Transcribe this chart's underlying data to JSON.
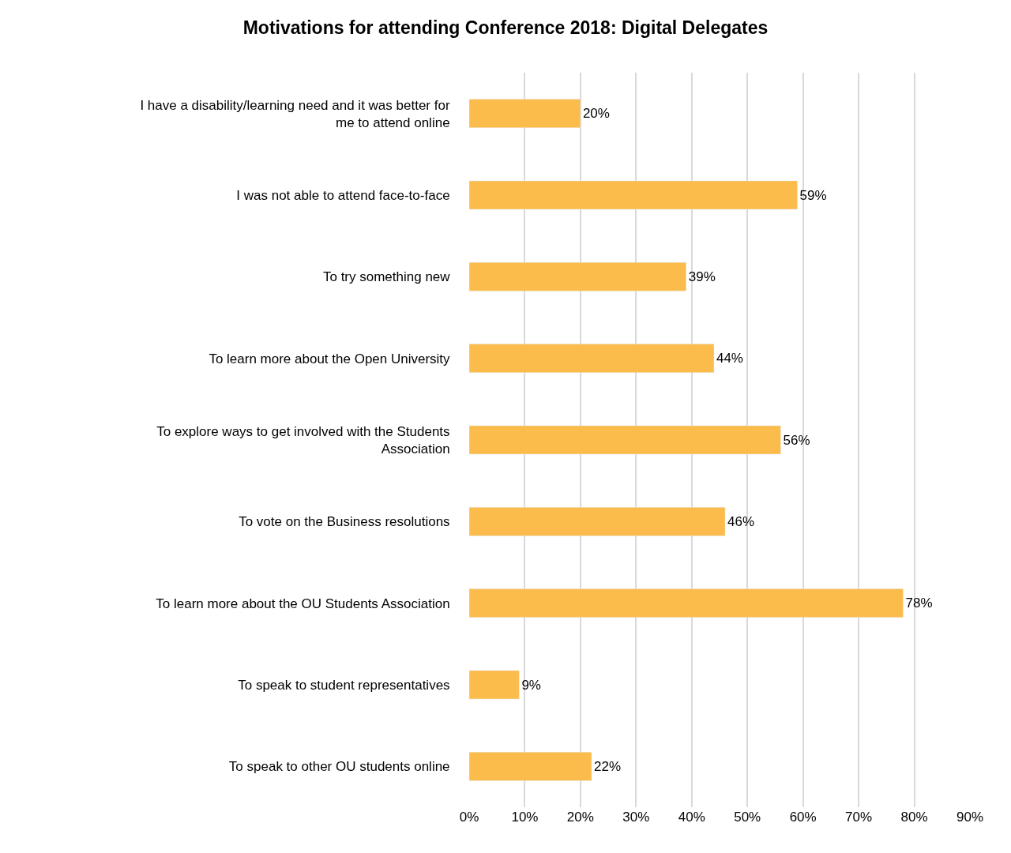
{
  "chart_data": {
    "type": "bar",
    "orientation": "horizontal",
    "title": "Motivations for attending Conference 2018: Digital Delegates",
    "categories": [
      "I have a disability/learning need and it was better for\nme to attend online",
      "I was not able to attend face-to-face",
      "To try something new",
      "To learn more about the Open University",
      "To explore ways to get involved with the Students\nAssociation",
      "To vote on the Business resolutions",
      "To learn more about the OU Students Association",
      "To speak to student representatives",
      "To speak to other OU students online"
    ],
    "values": [
      20,
      59,
      39,
      44,
      56,
      46,
      78,
      9,
      22
    ],
    "value_labels": [
      "20%",
      "59%",
      "39%",
      "44%",
      "56%",
      "46%",
      "78%",
      "9%",
      "22%"
    ],
    "color": "#fbbc4b",
    "xlim": [
      0,
      90
    ],
    "xticks": [
      {
        "value": 0,
        "label": "0%"
      },
      {
        "value": 10,
        "label": "10%"
      },
      {
        "value": 20,
        "label": "20%"
      },
      {
        "value": 30,
        "label": "30%"
      },
      {
        "value": 40,
        "label": "40%"
      },
      {
        "value": 50,
        "label": "50%"
      },
      {
        "value": 60,
        "label": "60%"
      },
      {
        "value": 70,
        "label": "70%"
      },
      {
        "value": 80,
        "label": "80%"
      },
      {
        "value": 90,
        "label": "90%"
      }
    ],
    "grid": "x"
  }
}
